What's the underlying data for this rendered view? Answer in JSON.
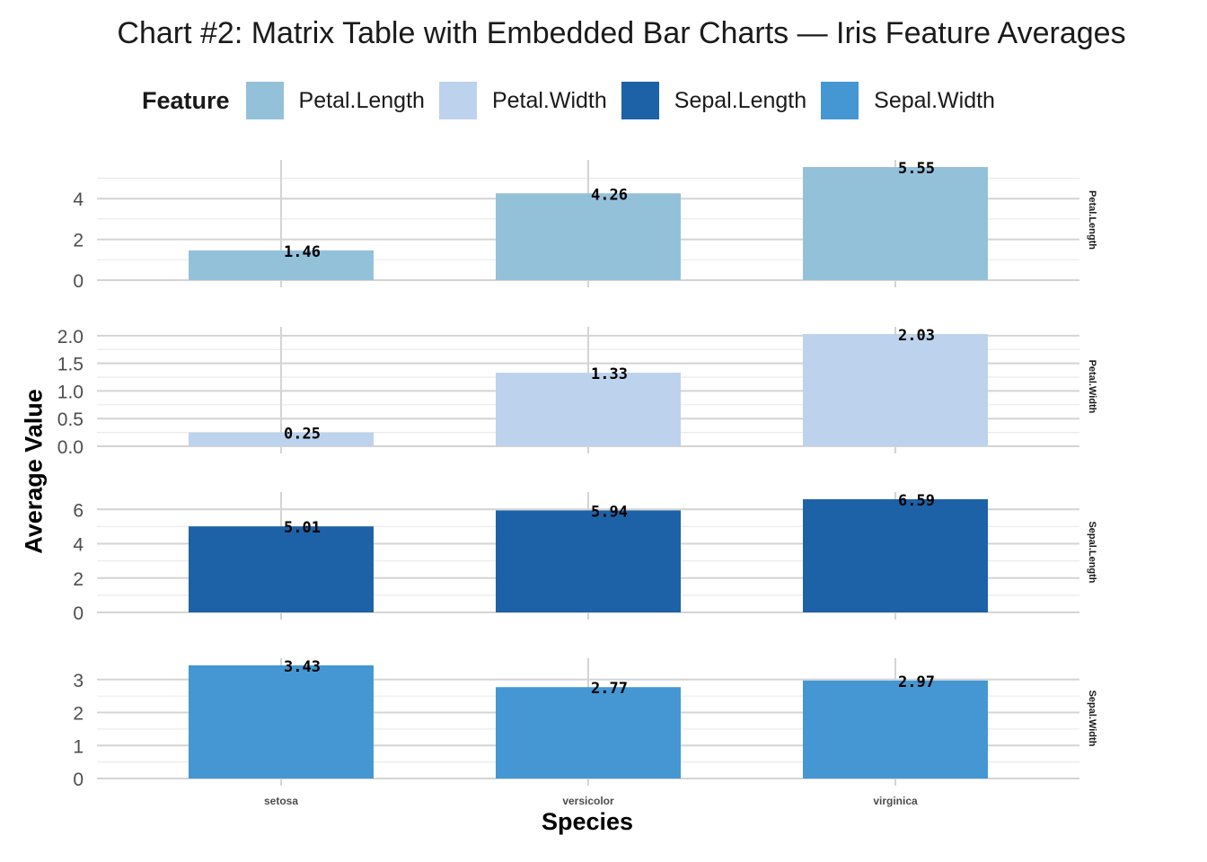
{
  "title": "Chart #2: Matrix Table with Embedded Bar Charts — Iris Feature Averages",
  "legend": {
    "title": "Feature",
    "items": [
      {
        "label": "Petal.Length",
        "color": "#94C1DA"
      },
      {
        "label": "Petal.Width",
        "color": "#BDD2EC"
      },
      {
        "label": "Sepal.Length",
        "color": "#1D62A6"
      },
      {
        "label": "Sepal.Width",
        "color": "#4497D3"
      }
    ]
  },
  "axis": {
    "xlabel": "Species",
    "ylabel": "Average Value"
  },
  "chart_data": {
    "type": "bar",
    "faceted": true,
    "facet_strip_position": "right",
    "legend_position": "top",
    "grid": true,
    "categories": [
      "setosa",
      "versicolor",
      "virginica"
    ],
    "xlabel": "Species",
    "ylabel": "Average Value",
    "panels": [
      {
        "name": "Petal.Length",
        "color": "#94C1DA",
        "values": [
          1.46,
          4.26,
          5.55
        ],
        "labels": [
          "1.46",
          "4.26",
          "5.55"
        ],
        "ylim": [
          0,
          5.55
        ],
        "ticks": [
          0,
          2,
          4
        ],
        "tick_labels": [
          "0",
          "2",
          "4"
        ]
      },
      {
        "name": "Petal.Width",
        "color": "#BDD2EC",
        "values": [
          0.25,
          1.33,
          2.03
        ],
        "labels": [
          "0.25",
          "1.33",
          "2.03"
        ],
        "ylim": [
          0,
          2.03
        ],
        "ticks": [
          0,
          0.5,
          1,
          1.5,
          2
        ],
        "tick_labels": [
          "0.0",
          "0.5",
          "1.0",
          "1.5",
          "2.0"
        ]
      },
      {
        "name": "Sepal.Length",
        "color": "#1D62A6",
        "values": [
          5.01,
          5.94,
          6.59
        ],
        "labels": [
          "5.01",
          "5.94",
          "6.59"
        ],
        "ylim": [
          0,
          6.59
        ],
        "ticks": [
          0,
          2,
          4,
          6
        ],
        "tick_labels": [
          "0",
          "2",
          "4",
          "6"
        ]
      },
      {
        "name": "Sepal.Width",
        "color": "#4497D3",
        "values": [
          3.43,
          2.77,
          2.97
        ],
        "labels": [
          "3.43",
          "2.77",
          "2.97"
        ],
        "ylim": [
          0,
          3.43
        ],
        "ticks": [
          0,
          1,
          2,
          3
        ],
        "tick_labels": [
          "0",
          "1",
          "2",
          "3"
        ]
      }
    ]
  }
}
